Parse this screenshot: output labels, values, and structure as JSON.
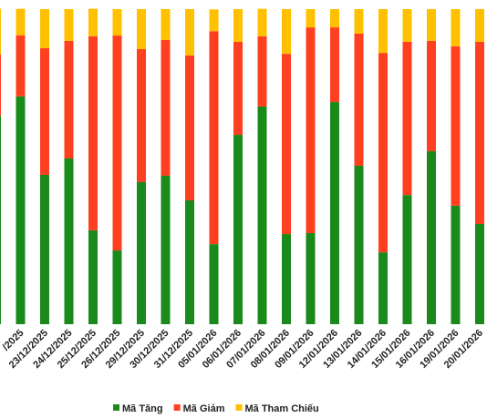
{
  "chart_data": {
    "type": "stacked_bar",
    "categories": [
      null,
      "/2025",
      "23/12/2025",
      "24/12/2025",
      "25/12/2025",
      "26/12/2025",
      "29/12/2025",
      "30/12/2025",
      "31/12/2025",
      "05/01/2026",
      "06/01/2026",
      "07/01/2026",
      "08/01/2026",
      "09/01/2026",
      "12/01/2026",
      "13/01/2026",
      "14/01/2026",
      "15/01/2026",
      "16/01/2026",
      "19/01/2026",
      "20/01/2026"
    ],
    "series": [
      {
        "name": "Mã Tăng",
        "color": "#1a8a1a",
        "values": [
          66.2,
          72.3,
          47.4,
          52.6,
          29.8,
          23.4,
          45.1,
          47.1,
          39.3,
          25.4,
          60.1,
          69.1,
          28.6,
          28.9,
          70.5,
          50.3,
          22.8,
          41.0,
          54.9,
          37.6,
          31.8
        ]
      },
      {
        "name": "Mã Giảm",
        "color": "#ff4020",
        "values": [
          19.4,
          19.4,
          40.2,
          37.3,
          61.6,
          68.2,
          42.2,
          43.1,
          46.0,
          67.6,
          29.5,
          22.3,
          57.2,
          65.3,
          23.7,
          41.9,
          63.3,
          48.6,
          35.0,
          50.6,
          57.8
        ]
      },
      {
        "name": "Mã Tham Chiếu",
        "color": "#ffc000",
        "values": [
          14.5,
          8.4,
          12.4,
          10.1,
          8.7,
          8.4,
          12.7,
          9.8,
          14.7,
          6.9,
          10.4,
          8.7,
          14.2,
          5.8,
          5.8,
          7.8,
          13.9,
          10.4,
          10.1,
          11.8,
          10.4
        ]
      }
    ],
    "ylim": [
      0,
      100
    ],
    "legend": "bottom"
  }
}
